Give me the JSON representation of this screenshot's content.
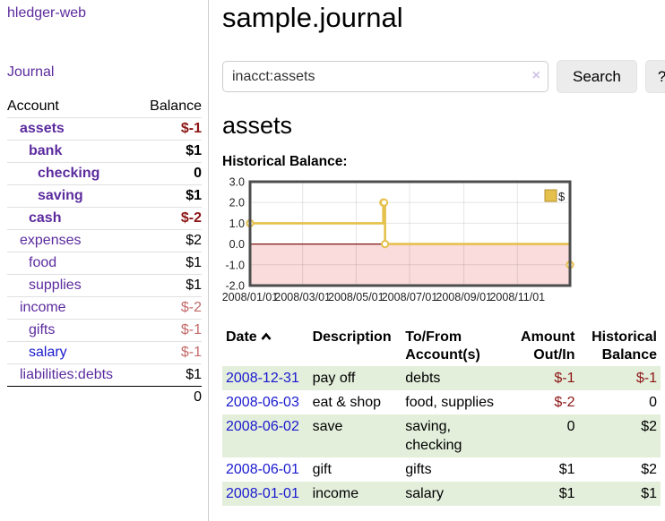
{
  "app": {
    "title": "hledger-web",
    "nav_journal": "Journal"
  },
  "sidebar": {
    "accounts_header": {
      "account": "Account",
      "balance": "Balance"
    },
    "accounts": [
      {
        "name": "assets",
        "balance": "$-1",
        "level": 1,
        "bold": true,
        "balance_color": "neg-strong"
      },
      {
        "name": "bank",
        "balance": "$1",
        "level": 2,
        "bold": true,
        "balance_color": ""
      },
      {
        "name": "checking",
        "balance": "0",
        "level": 3,
        "bold": true,
        "balance_color": ""
      },
      {
        "name": "saving",
        "balance": "$1",
        "level": 3,
        "bold": true,
        "balance_color": ""
      },
      {
        "name": "cash",
        "balance": "$-2",
        "level": 2,
        "bold": true,
        "balance_color": "neg-strong"
      },
      {
        "name": "expenses",
        "balance": "$2",
        "level": 1,
        "bold": false,
        "balance_color": ""
      },
      {
        "name": "food",
        "balance": "$1",
        "level": 2,
        "bold": false,
        "balance_color": ""
      },
      {
        "name": "supplies",
        "balance": "$1",
        "level": 2,
        "bold": false,
        "balance_color": ""
      },
      {
        "name": "income",
        "balance": "$-2",
        "level": 1,
        "bold": false,
        "balance_color": "neg-soft"
      },
      {
        "name": "gifts",
        "balance": "$-1",
        "level": 2,
        "bold": false,
        "balance_color": "neg-soft"
      },
      {
        "name": "salary",
        "balance": "$-1",
        "level": 2,
        "bold": false,
        "balance_color": "neg-soft",
        "link_color": "blue"
      },
      {
        "name": "liabilities:debts",
        "balance": "$1",
        "level": 1,
        "bold": false,
        "balance_color": ""
      }
    ],
    "total": "0"
  },
  "header": {
    "title": "sample.journal"
  },
  "search": {
    "query": "inacct:assets",
    "clear_icon": "×",
    "button": "Search",
    "help_button": "?"
  },
  "account_page": {
    "heading": "assets",
    "chart_title": "Historical Balance:"
  },
  "chart_data": {
    "type": "line",
    "title": "Historical Balance:",
    "step": true,
    "series": [
      {
        "name": "$",
        "color": "#e5c04c",
        "points": [
          [
            "2008-01-01",
            1
          ],
          [
            "2008-06-01",
            2
          ],
          [
            "2008-06-02",
            2
          ],
          [
            "2008-06-03",
            0
          ],
          [
            "2008-12-31",
            -1
          ]
        ]
      }
    ],
    "x_ticks": [
      "2008/01/01",
      "2008/03/01",
      "2008/05/01",
      "2008/07/01",
      "2008/09/01",
      "2008/11/01"
    ],
    "y_ticks": [
      3.0,
      2.0,
      1.0,
      0.0,
      -1.0,
      -2.0
    ],
    "ylim": [
      -2,
      3
    ],
    "xlim": [
      "2008-01-01",
      "2008-12-31"
    ],
    "grid": true,
    "legend": {
      "label": "$",
      "position": "top-right"
    },
    "negative_region_color": "#fadcdc",
    "zero_line_color": "#7e1414",
    "plot_border_color": "#4d4d4d"
  },
  "register": {
    "columns": [
      {
        "label": "Date",
        "sorted": "asc"
      },
      {
        "label": "Description"
      },
      {
        "label": "To/From Account(s)"
      },
      {
        "label": "Amount Out/In",
        "align": "right"
      },
      {
        "label": "Historical Balance",
        "align": "right"
      }
    ],
    "rows": [
      {
        "date": "2008-12-31",
        "description": "pay off",
        "accounts": "debts",
        "amount": "$-1",
        "amount_negative": true,
        "balance": "$-1",
        "balance_negative": true,
        "shade": true
      },
      {
        "date": "2008-06-03",
        "description": "eat & shop",
        "accounts": "food, supplies",
        "amount": "$-2",
        "amount_negative": true,
        "balance": "0",
        "balance_negative": false,
        "shade": false
      },
      {
        "date": "2008-06-02",
        "description": "save",
        "accounts": "saving, checking",
        "amount": "0",
        "amount_negative": false,
        "balance": "$2",
        "balance_negative": false,
        "shade": true
      },
      {
        "date": "2008-06-01",
        "description": "gift",
        "accounts": "gifts",
        "amount": "$1",
        "amount_negative": false,
        "balance": "$2",
        "balance_negative": false,
        "shade": false
      },
      {
        "date": "2008-01-01",
        "description": "income",
        "accounts": "salary",
        "amount": "$1",
        "amount_negative": false,
        "balance": "$1",
        "balance_negative": false,
        "shade": true
      }
    ]
  }
}
